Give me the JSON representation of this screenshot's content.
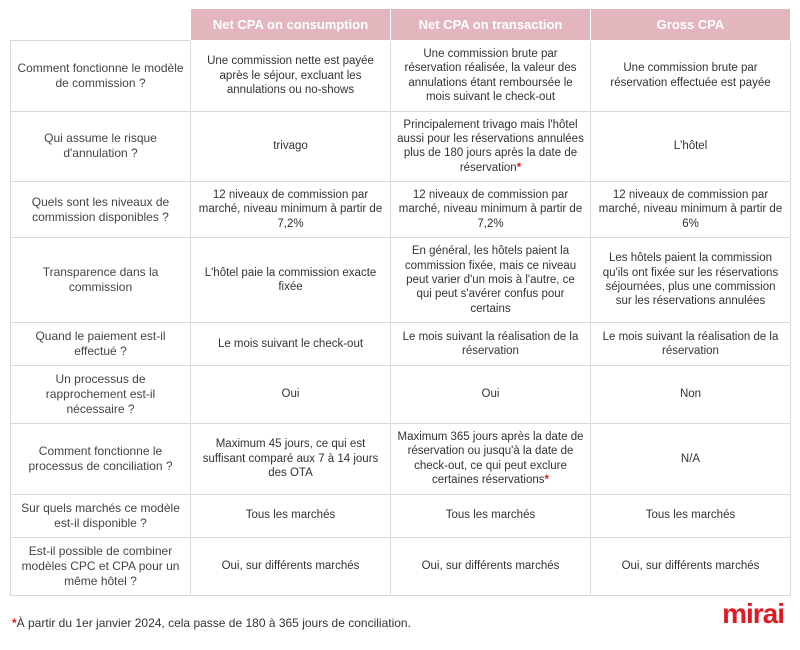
{
  "colors": {
    "header_bg": "#e3b6be",
    "header_text": "#ffffff",
    "border": "#d9d9d9",
    "text": "#333333",
    "accent_red": "#e11a22",
    "background": "#ffffff"
  },
  "column_headers": [
    "Net CPA on consumption",
    "Net CPA on transaction",
    "Gross CPA"
  ],
  "row_labels": [
    "Comment fonctionne le modèle de commission ?",
    "Qui assume le risque d'annulation ?",
    "Quels sont les niveaux de commission disponibles ?",
    "Transparence dans la commission",
    "Quand le paiement est-il effectué ?",
    "Un processus de rapprochement est-il nécessaire ?",
    "Comment fonctionne le processus de conciliation ?",
    "Sur quels marchés ce modèle est-il disponible ?",
    "Est-il possible de combiner modèles CPC et CPA pour un même hôtel ?"
  ],
  "cells": [
    [
      "Une commission nette est payée après le séjour, excluant les annulations ou no-shows",
      "Une commission brute par réservation réalisée, la valeur des annulations étant remboursée le mois suivant le check-out",
      "Une commission brute par réservation effectuée est payée"
    ],
    [
      "trivago",
      "Principalement trivago mais l'hôtel aussi pour les réservations annulées plus de 180 jours après la date de réservation",
      "L'hôtel"
    ],
    [
      "12 niveaux de commission par marché, niveau minimum à partir de 7,2%",
      "12 niveaux de commission par marché, niveau minimum à partir de 7,2%",
      "12 niveaux de commission par marché, niveau minimum à partir de 6%"
    ],
    [
      "L'hôtel paie la commission exacte fixée",
      "En général, les hôtels paient la commission fixée, mais ce niveau peut varier d'un mois à l'autre, ce qui peut s'avérer confus pour certains",
      "Les hôtels paient la commission qu'ils ont fixée sur les réservations séjournées, plus une commission sur les réservations annulées"
    ],
    [
      "Le mois suivant le check-out",
      "Le mois suivant la réalisation de la réservation",
      "Le mois suivant la réalisation de la réservation"
    ],
    [
      "Oui",
      "Oui",
      "Non"
    ],
    [
      "Maximum 45 jours, ce qui est suffisant comparé aux 7 à 14 jours des OTA",
      "Maximum 365 jours après la date de réservation ou jusqu'à la date de check-out, ce qui peut exclure certaines réservations",
      "N/A"
    ],
    [
      "Tous les marchés",
      "Tous les marchés",
      "Tous les marchés"
    ],
    [
      "Oui, sur différents marchés",
      "Oui, sur différents marchés",
      "Oui, sur différents marchés"
    ]
  ],
  "asterisks": [
    [
      1,
      1
    ],
    [
      6,
      1
    ]
  ],
  "footnote_marker": "*",
  "footnote_text": "À partir du 1er janvier 2024, cela passe de 180 à 365 jours de conciliation.",
  "logo_text": "mirai",
  "fontsize": {
    "header": 13,
    "rowlabel": 12,
    "cell": 11.5,
    "footnote": 12,
    "logo": 28
  }
}
